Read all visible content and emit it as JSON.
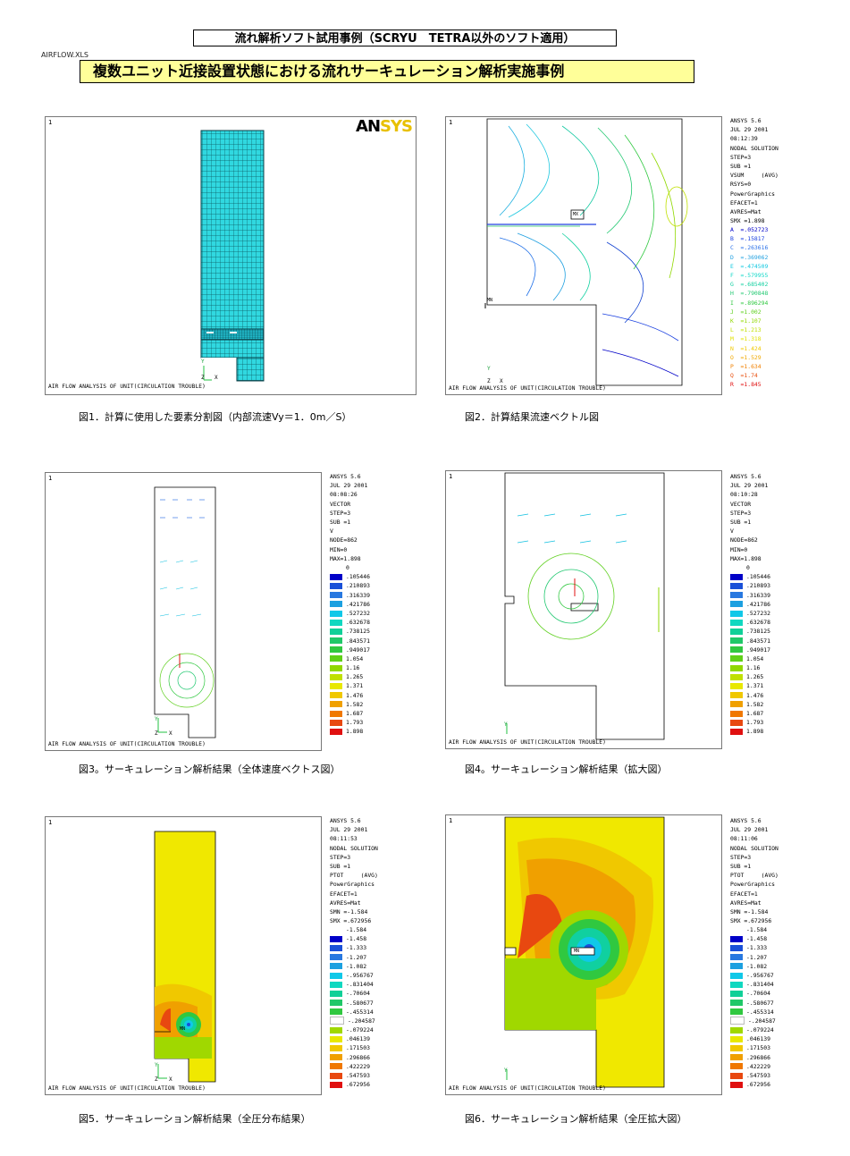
{
  "header": {
    "top_title": "流れ解析ソフト試用事例（SCRYU　TETRA以外のソフト適用）",
    "file_name": "AIRFLOW.XLS",
    "main_title": "複数ユニット近接設置状態における流れサーキュレーション解析実施事例"
  },
  "common": {
    "panel_number": "1",
    "footer_text": "AIR FLOW ANALYSIS OF UNIT(CIRCULATION TROUBLE)",
    "axis_y": "Y",
    "axis_z": "Z",
    "axis_x": "X",
    "node_label": "MN",
    "node_label2": "MX",
    "logo_an": "AN",
    "logo_sys": "SYS"
  },
  "fig1": {
    "caption": "図1．計算に使用した要素分割図（内部流速Vy＝1．0m／S）"
  },
  "fig2": {
    "caption": "図2．計算結果流速ベクトル図",
    "info": [
      "ANSYS 5.6",
      "JUL 29 2001",
      "08:12:39",
      "NODAL SOLUTION",
      "STEP=3",
      "SUB =1",
      "VSUM     (AVG)",
      "RSYS=0",
      "PowerGraphics",
      "EFACET=1",
      "AVRES=Mat",
      "SMX =1.898"
    ],
    "legend": [
      {
        "k": "A",
        "v": "=.052723",
        "c": "#0000c8"
      },
      {
        "k": "B",
        "v": "=.15817",
        "c": "#1a40e0"
      },
      {
        "k": "C",
        "v": "=.263616",
        "c": "#2a70e8"
      },
      {
        "k": "D",
        "v": "=.369062",
        "c": "#20a0e0"
      },
      {
        "k": "E",
        "v": "=.474509",
        "c": "#10c8e0"
      },
      {
        "k": "F",
        "v": "=.579955",
        "c": "#10d8c8"
      },
      {
        "k": "G",
        "v": "=.685402",
        "c": "#10d0a0"
      },
      {
        "k": "H",
        "v": "=.790848",
        "c": "#20c870"
      },
      {
        "k": "I",
        "v": "=.896294",
        "c": "#30c840"
      },
      {
        "k": "J",
        "v": "=1.002",
        "c": "#60d020"
      },
      {
        "k": "K",
        "v": "=1.107",
        "c": "#90d800"
      },
      {
        "k": "L",
        "v": "=1.213",
        "c": "#c0e000"
      },
      {
        "k": "M",
        "v": "=1.318",
        "c": "#e0e000"
      },
      {
        "k": "N",
        "v": "=1.424",
        "c": "#f0c800"
      },
      {
        "k": "O",
        "v": "=1.529",
        "c": "#f0a800"
      },
      {
        "k": "P",
        "v": "=1.634",
        "c": "#f08000"
      },
      {
        "k": "Q",
        "v": "=1.74",
        "c": "#e85010"
      },
      {
        "k": "R",
        "v": "=1.845",
        "c": "#e01010"
      }
    ]
  },
  "fig3": {
    "caption": "図3。サーキュレーション解析結果（全体速度ベクトス図）",
    "info": [
      "ANSYS 5.6",
      "JUL 29 2001",
      "08:08:26",
      "VECTOR",
      "STEP=3",
      "SUB =1",
      "V",
      "NODE=862",
      "MIN=0",
      "MAX=1.898"
    ]
  },
  "fig4": {
    "caption": "図4。サーキュレーション解析結果（拡大図）",
    "info": [
      "ANSYS 5.6",
      "JUL 29 2001",
      "08:10:28",
      "VECTOR",
      "STEP=3",
      "SUB =1",
      "V",
      "NODE=862",
      "MIN=0",
      "MAX=1.898"
    ]
  },
  "vector_legend": {
    "top": "0",
    "items": [
      {
        "v": ".105446",
        "c": "#0000c8"
      },
      {
        "v": ".210893",
        "c": "#1a50d8"
      },
      {
        "v": ".316339",
        "c": "#2878e0"
      },
      {
        "v": ".421786",
        "c": "#1ca0e0"
      },
      {
        "v": ".527232",
        "c": "#10c8e8"
      },
      {
        "v": ".632678",
        "c": "#10d8c0"
      },
      {
        "v": ".738125",
        "c": "#10d098"
      },
      {
        "v": ".843571",
        "c": "#20c868"
      },
      {
        "v": ".949017",
        "c": "#30c840"
      },
      {
        "v": "1.054",
        "c": "#60d018"
      },
      {
        "v": "1.16",
        "c": "#90d800"
      },
      {
        "v": "1.265",
        "c": "#c0e000"
      },
      {
        "v": "1.371",
        "c": "#e8e800"
      },
      {
        "v": "1.476",
        "c": "#f0c800"
      },
      {
        "v": "1.582",
        "c": "#f0a000"
      },
      {
        "v": "1.687",
        "c": "#f07800"
      },
      {
        "v": "1.793",
        "c": "#e84810"
      },
      {
        "v": "1.898",
        "c": "#e01010"
      }
    ]
  },
  "fig5": {
    "caption": "図5．サーキュレーション解析結果（全圧分布結果）",
    "info": [
      "ANSYS 5.6",
      "JUL 29 2001",
      "08:11:53",
      "NODAL SOLUTION",
      "STEP=3",
      "SUB =1",
      "PTOT     (AVG)",
      "PowerGraphics",
      "EFACET=1",
      "AVRES=Mat",
      "SMN =-1.584",
      "SMX =.672956"
    ]
  },
  "fig6": {
    "caption": "図6．サーキュレーション解析結果（全圧拡大図）",
    "info": [
      "ANSYS 5.6",
      "JUL 29 2001",
      "08:11:06",
      "NODAL SOLUTION",
      "STEP=3",
      "SUB =1",
      "PTOT     (AVG)",
      "PowerGraphics",
      "EFACET=1",
      "AVRES=Mat",
      "SMN =-1.584",
      "SMX =.672956"
    ]
  },
  "pressure_legend": {
    "top": "-1.584",
    "items": [
      {
        "v": "-1.458",
        "c": "#0000c8"
      },
      {
        "v": "-1.333",
        "c": "#1a50d8"
      },
      {
        "v": "-1.207",
        "c": "#2878e0"
      },
      {
        "v": "-1.082",
        "c": "#1ca0e0"
      },
      {
        "v": "-.956767",
        "c": "#10c8e8"
      },
      {
        "v": "-.831404",
        "c": "#10d8c0"
      },
      {
        "v": "-.70604",
        "c": "#10d098"
      },
      {
        "v": "-.580677",
        "c": "#20c868"
      },
      {
        "v": "-.455314",
        "c": "#30c840"
      },
      {
        "v": "-.204587",
        "c": "#ffffff"
      },
      {
        "v": "-.079224",
        "c": "#a0d800"
      },
      {
        "v": ".046139",
        "c": "#e8e800"
      },
      {
        "v": ".171503",
        "c": "#f0c800"
      },
      {
        "v": ".296866",
        "c": "#f0a000"
      },
      {
        "v": ".422229",
        "c": "#f07800"
      },
      {
        "v": ".547593",
        "c": "#e84810"
      },
      {
        "v": ".672956",
        "c": "#e01010"
      }
    ]
  }
}
